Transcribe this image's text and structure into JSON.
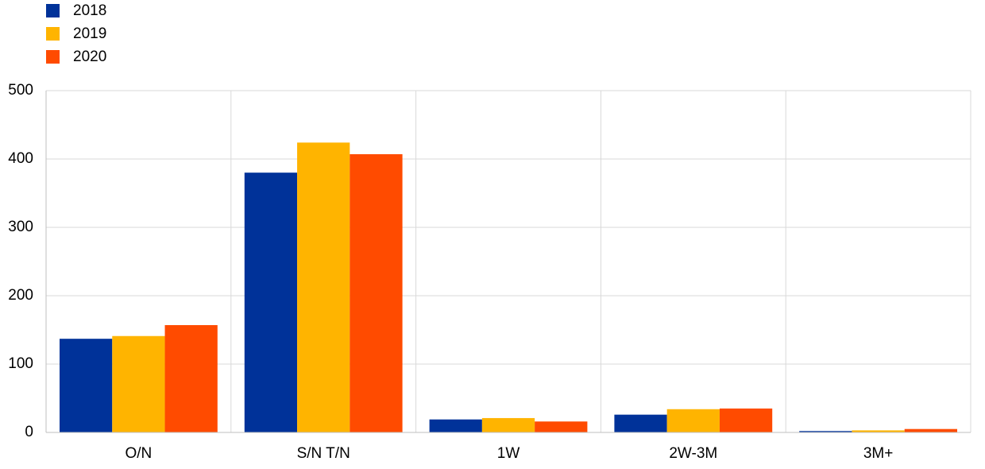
{
  "chart_data": {
    "type": "bar",
    "categories": [
      "O/N",
      "S/N T/N",
      "1W",
      "2W-3M",
      "3M+"
    ],
    "series": [
      {
        "name": "2018",
        "color": "#003299",
        "values": [
          137,
          380,
          19,
          26,
          2
        ]
      },
      {
        "name": "2019",
        "color": "#ffb400",
        "values": [
          141,
          424,
          21,
          34,
          3
        ]
      },
      {
        "name": "2020",
        "color": "#ff4b00",
        "values": [
          157,
          407,
          16,
          35,
          5
        ]
      }
    ],
    "ylim": [
      0,
      500
    ],
    "yticks": [
      0,
      100,
      200,
      300,
      400,
      500
    ],
    "grid": true,
    "legend": "top-left"
  }
}
